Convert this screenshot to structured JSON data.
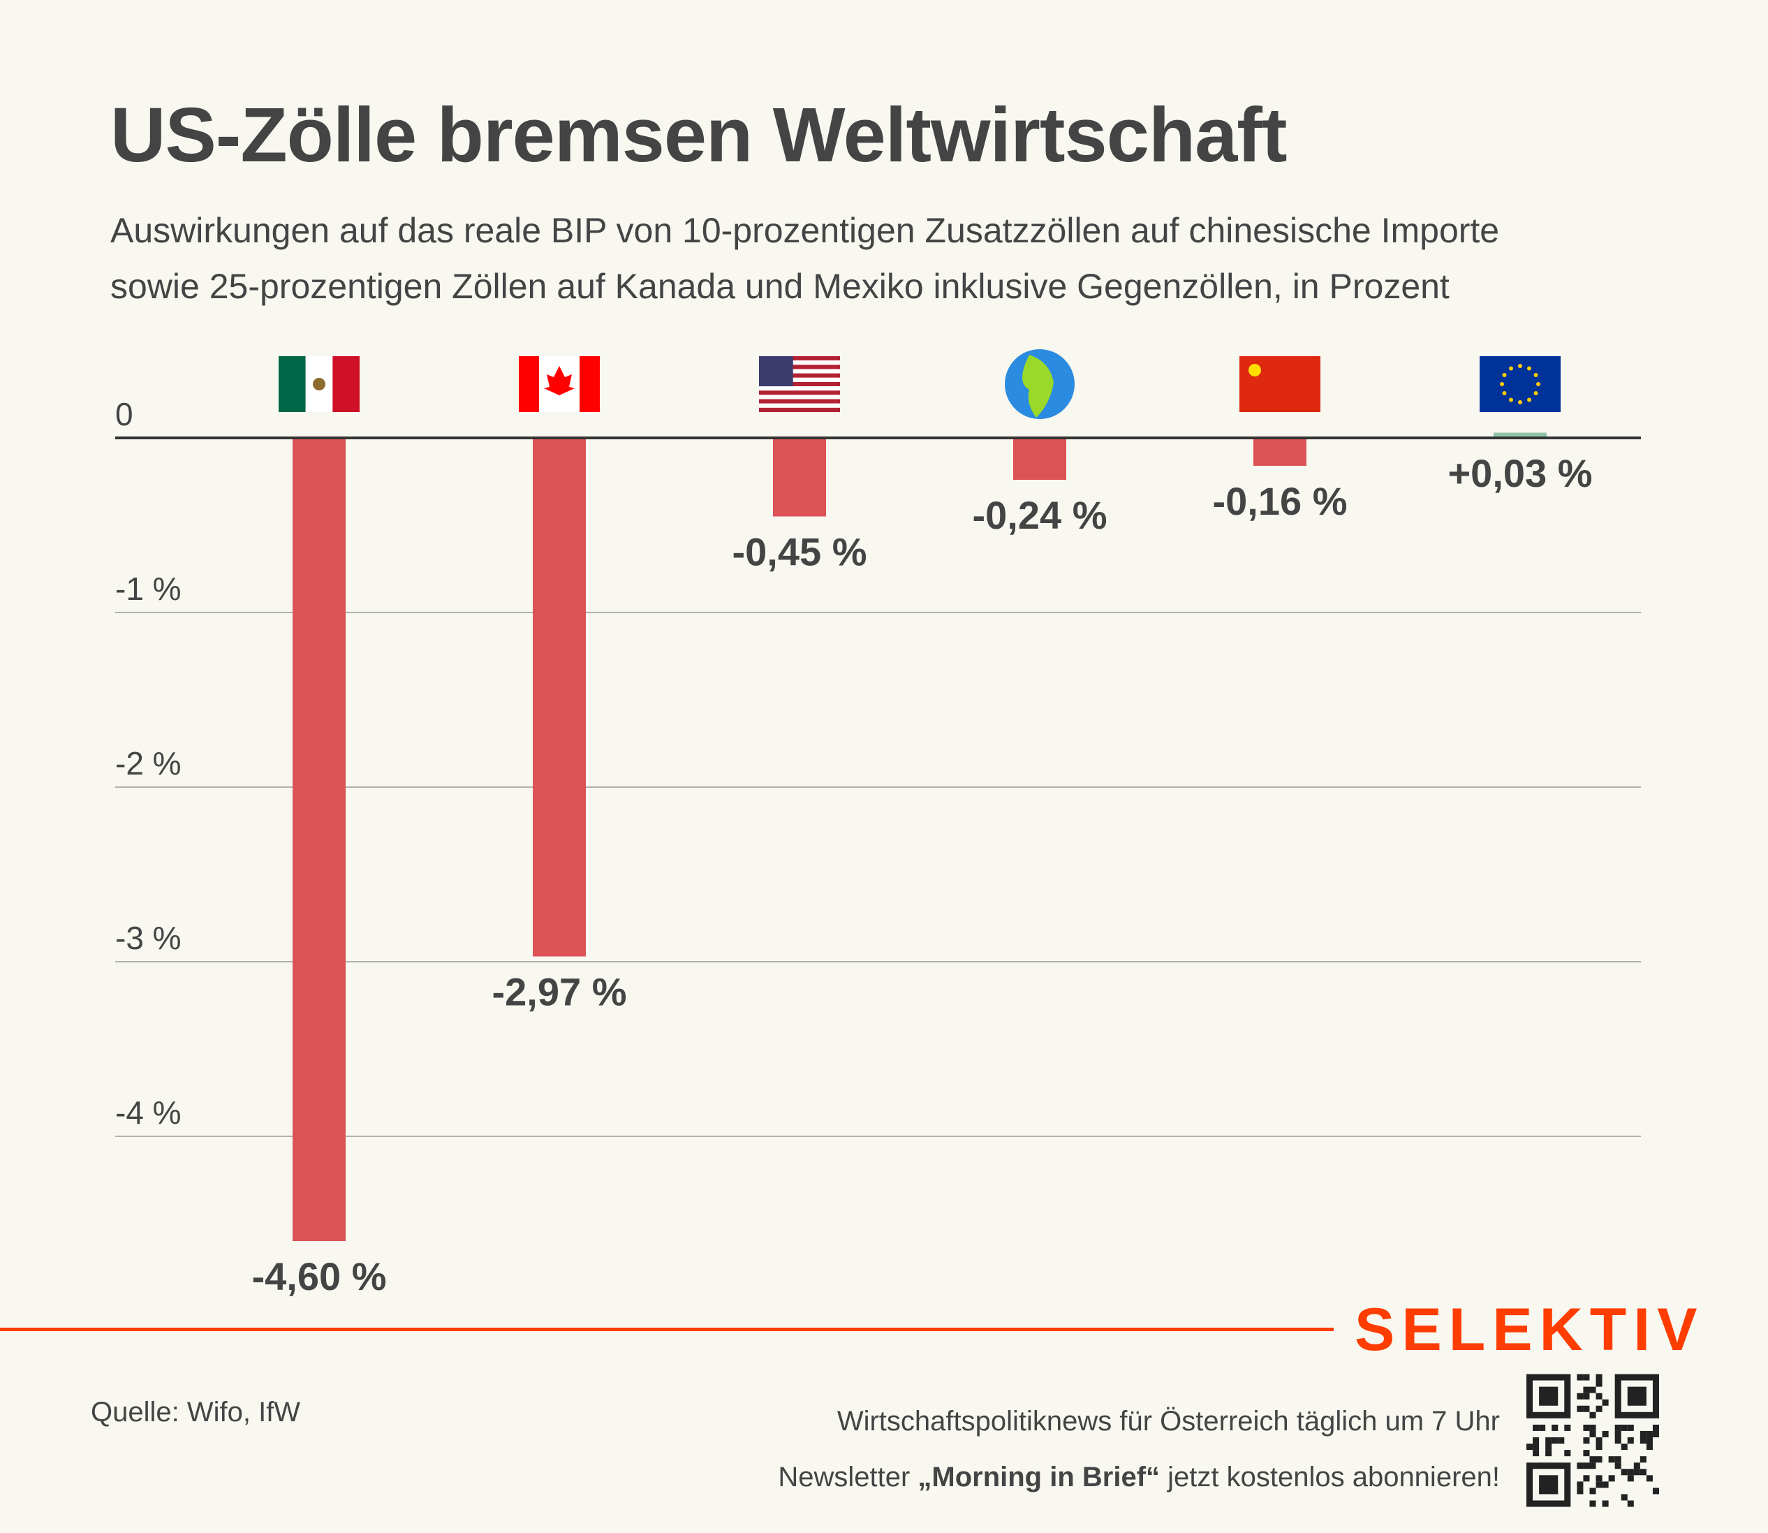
{
  "header": {
    "title": "US-Zölle bremsen Weltwirtschaft",
    "subtitle_line1": "Auswirkungen auf das reale BIP von 10-prozentigen Zusatzzöllen auf chinesische Importe",
    "subtitle_line2": "sowie 25-prozentigen Zöllen auf Kanada und Mexiko inklusive Gegenzöllen, in Prozent"
  },
  "chart_data": {
    "type": "bar",
    "title": "US-Zölle bremsen Weltwirtschaft",
    "categories": [
      "Mexiko",
      "Kanada",
      "USA",
      "Welt",
      "China",
      "EU"
    ],
    "category_icons": [
      "flag-mexico-icon",
      "flag-canada-icon",
      "flag-usa-icon",
      "globe-icon",
      "flag-china-icon",
      "flag-eu-icon"
    ],
    "values": [
      -4.6,
      -2.97,
      -0.45,
      -0.24,
      -0.16,
      0.03
    ],
    "data_labels": [
      "-4,60 %",
      "-2,97 %",
      "-0,45 %",
      "-0,24 %",
      "-0,16 %",
      "+0,03 %"
    ],
    "yticks": [
      0,
      -1,
      -2,
      -3,
      -4
    ],
    "ytick_labels": [
      "0",
      "-1 %",
      "-2 %",
      "-3 %",
      "-4 %"
    ],
    "ylim": [
      -4.6,
      0.03
    ],
    "xlabel": "",
    "ylabel": "",
    "grid": true,
    "legend": "none",
    "colors": {
      "negative": "#dc5356",
      "positive": "#8fc4a8",
      "axis": "#333333",
      "grid": "#999999"
    }
  },
  "footer": {
    "source": "Quelle: Wifo, IfW",
    "promo_line1": "Wirtschaftspolitiknews für Österreich täglich um 7 Uhr",
    "promo_line2_pre": "Newsletter ",
    "promo_line2_bold": "„Morning in Brief“",
    "promo_line2_post": " jetzt kostenlos abonnieren!",
    "logo": "SELEKTIV",
    "brand_color": "#ff3d00"
  }
}
